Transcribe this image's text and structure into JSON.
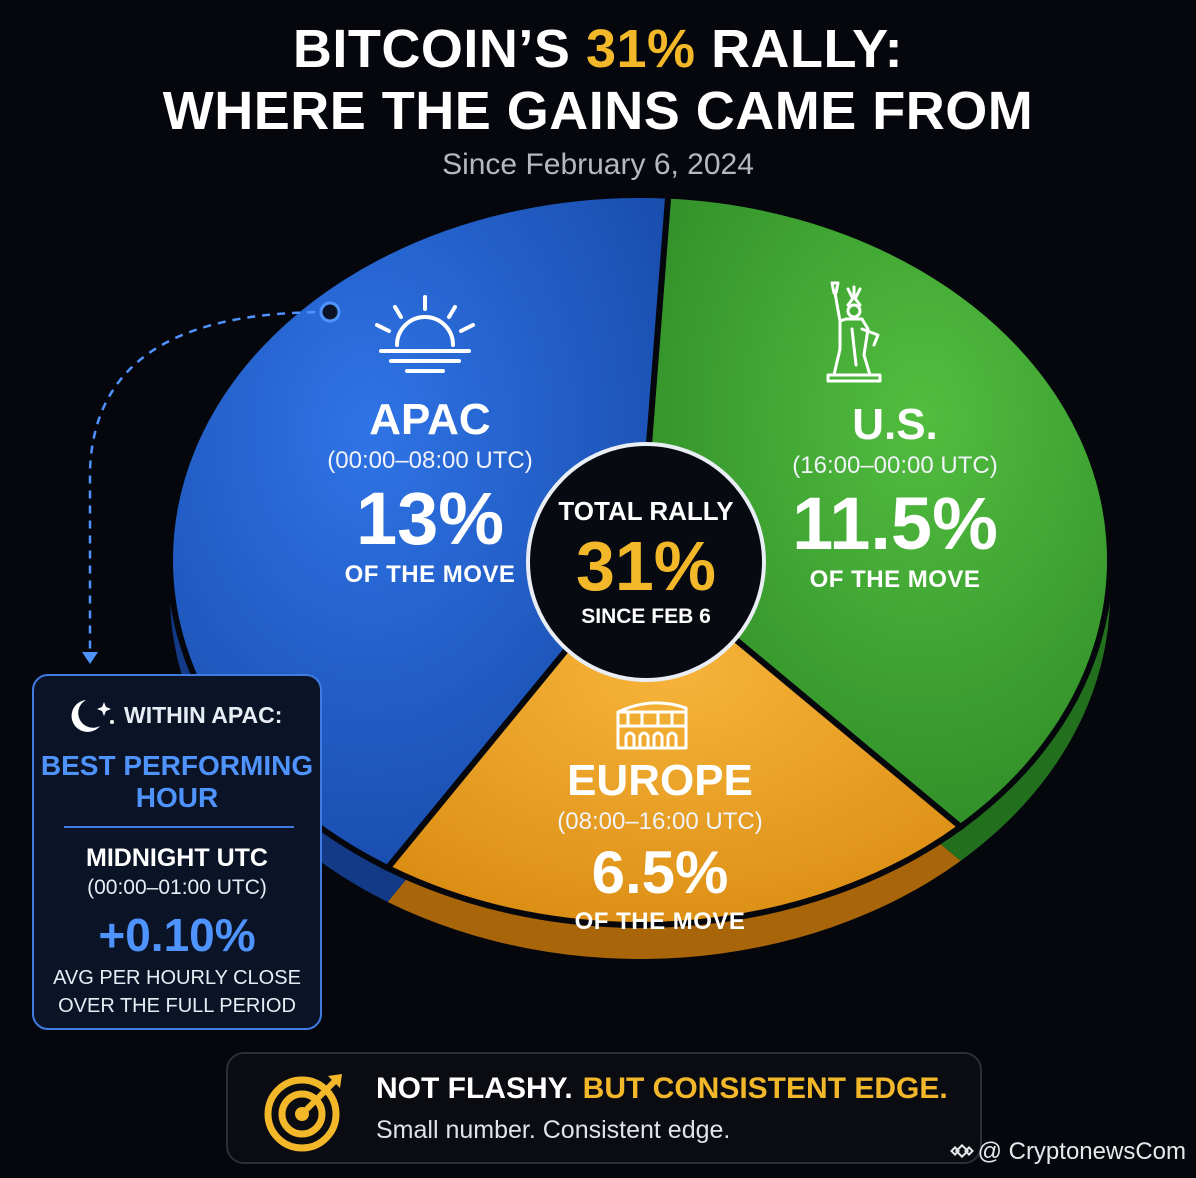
{
  "title": {
    "line1_before": "Bitcoin’s",
    "line1_highlight": "31%",
    "line1_after": "Rally:",
    "line2": "Where the Gains Came From",
    "subtitle": "Since February 6, 2024"
  },
  "chart_data": {
    "type": "pie",
    "categories": [
      "APAC",
      "Europe",
      "U.S."
    ],
    "series": [
      {
        "values": [
          13,
          6.5,
          11.5
        ]
      }
    ],
    "segments": [
      {
        "name": "APAC",
        "time": "(00:00–08:00 UTC)",
        "value": 13,
        "pct_label": "13%",
        "move_label": "OF THE MOVE",
        "color": "#1f5fd0",
        "icon": "sunrise-icon"
      },
      {
        "name": "EUROPE",
        "time": "(08:00–16:00 UTC)",
        "value": 6.5,
        "pct_label": "6.5%",
        "move_label": "OF THE MOVE",
        "color": "#f0a21c",
        "icon": "colosseum-icon"
      },
      {
        "name": "U.S.",
        "time": "(16:00–00:00 UTC)",
        "value": 11.5,
        "pct_label": "11.5%",
        "move_label": "OF THE MOVE",
        "color": "#3fa535",
        "icon": "statue-of-liberty-icon"
      }
    ],
    "center": {
      "top": "TOTAL RALLY",
      "value": "31%",
      "bottom": "SINCE FEB 6"
    }
  },
  "callout": {
    "heading": "WITHIN APAC:",
    "best_line1": "BEST PERFORMING",
    "best_line2": "HOUR",
    "hour": "MIDNIGHT UTC",
    "hour_range": "(00:00–01:00 UTC)",
    "gain": "+0.10%",
    "avg_line1": "AVG PER HOURLY CLOSE",
    "avg_line2": "OVER THE FULL PERIOD",
    "icon": "moon-stars-icon",
    "accent": "#4f93ff"
  },
  "banner": {
    "headline_white": "NOT FLASHY.",
    "headline_yellow": "BUT CONSISTENT EDGE.",
    "subline": "Small number. Consistent edge.",
    "icon": "target-icon"
  },
  "watermark": {
    "text": "@ CryptonewsCom",
    "icon": "binance-logo-icon"
  },
  "colors": {
    "accent_yellow": "#f3b829",
    "apac_blue": "#1f5fd0",
    "us_green": "#3fa535",
    "europe_orange": "#f0a21c",
    "background": "#05070d"
  }
}
